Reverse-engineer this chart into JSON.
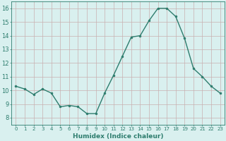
{
  "x": [
    0,
    1,
    2,
    3,
    4,
    5,
    6,
    7,
    8,
    9,
    10,
    11,
    12,
    13,
    14,
    15,
    16,
    17,
    18,
    19,
    20,
    21,
    22,
    23
  ],
  "y": [
    10.3,
    10.1,
    9.7,
    10.1,
    9.8,
    8.8,
    8.9,
    8.8,
    8.3,
    8.3,
    9.8,
    11.1,
    12.5,
    13.9,
    14.0,
    15.1,
    16.0,
    16.0,
    15.4,
    13.8,
    11.6,
    11.0,
    10.3,
    9.8
  ],
  "line_color": "#2e7d6e",
  "marker_size": 2.0,
  "line_width": 1.0,
  "xlabel": "Humidex (Indice chaleur)",
  "xlim": [
    -0.5,
    23.5
  ],
  "ylim": [
    7.5,
    16.5
  ],
  "yticks": [
    8,
    9,
    10,
    11,
    12,
    13,
    14,
    15,
    16
  ],
  "xticks": [
    0,
    1,
    2,
    3,
    4,
    5,
    6,
    7,
    8,
    9,
    10,
    11,
    12,
    13,
    14,
    15,
    16,
    17,
    18,
    19,
    20,
    21,
    22,
    23
  ],
  "bg_color": "#d9f0ef",
  "grid_color": "#c8b0b0",
  "line_spine_color": "#2e7d6e",
  "tick_color": "#2e7d6e",
  "label_color": "#2e7d6e",
  "xlabel_fontsize": 6.5,
  "xtick_fontsize": 5.0,
  "ytick_fontsize": 6.0
}
